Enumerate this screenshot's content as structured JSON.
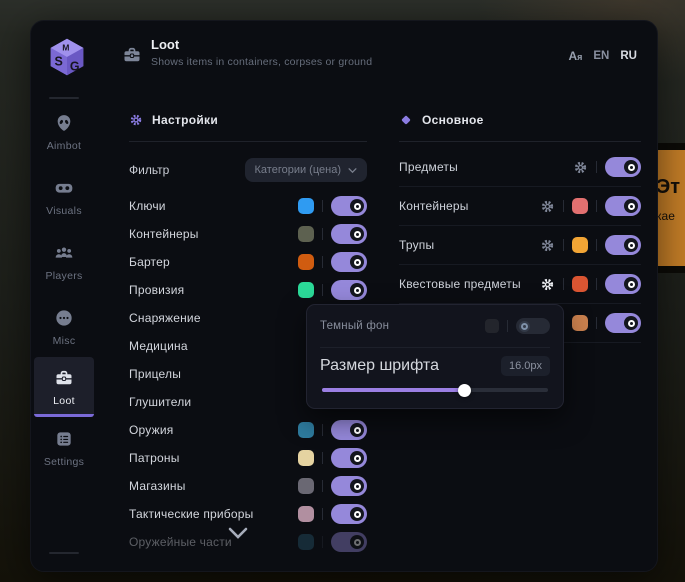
{
  "header": {
    "title": "Loot",
    "subtitle": "Shows items in containers, corpses or ground",
    "lang_en": "EN",
    "lang_ru": "RU",
    "lang_selected": "RU"
  },
  "sidebar": {
    "items": [
      {
        "label": "Aimbot",
        "icon": "alien-icon",
        "active": false
      },
      {
        "label": "Visuals",
        "icon": "goggles-icon",
        "active": false
      },
      {
        "label": "Players",
        "icon": "players-icon",
        "active": false
      },
      {
        "label": "Misc",
        "icon": "misc-icon",
        "active": false
      },
      {
        "label": "Loot",
        "icon": "briefcase-icon",
        "active": true
      },
      {
        "label": "Settings",
        "icon": "list-icon",
        "active": false
      }
    ]
  },
  "settings_panel": {
    "title": "Настройки",
    "icon": "gear-icon",
    "filter": {
      "label": "Фильтр",
      "value": "Категории (цена)"
    },
    "items": [
      {
        "label": "Ключи",
        "color": "#2f9bf2",
        "enabled": true
      },
      {
        "label": "Контейнеры",
        "color": "#5d6150",
        "enabled": true
      },
      {
        "label": "Бартер",
        "color": "#d05c10",
        "enabled": true
      },
      {
        "label": "Провизия",
        "color": "#2bd998",
        "enabled": true
      },
      {
        "label": "Снаряжение",
        "color": null,
        "enabled": null,
        "covered_by_popup": true
      },
      {
        "label": "Медицина",
        "color": null,
        "enabled": null,
        "covered_by_popup": true
      },
      {
        "label": "Прицелы",
        "color": null,
        "enabled": null,
        "covered_by_popup": true
      },
      {
        "label": "Глушители",
        "color": null,
        "enabled": null,
        "covered_by_popup": true
      },
      {
        "label": "Оружия",
        "color": "#2e7b9e",
        "enabled": true
      },
      {
        "label": "Патроны",
        "color": "#e5d3a1",
        "enabled": true
      },
      {
        "label": "Магазины",
        "color": "#6a6873",
        "enabled": true
      },
      {
        "label": "Тактические приборы",
        "color": "#b18fa0",
        "enabled": true
      },
      {
        "label": "Оружейные части",
        "color": "#27586e",
        "enabled": true,
        "dimmed": true
      }
    ]
  },
  "main_panel": {
    "title": "Основное",
    "icon": "diamond-icon",
    "rows": [
      {
        "label": "Предметы",
        "color": null,
        "enabled": true,
        "gear": true,
        "gear_active": false
      },
      {
        "label": "Контейнеры",
        "color": "#e27070",
        "enabled": true,
        "gear": true,
        "gear_active": false
      },
      {
        "label": "Трупы",
        "color": "#f2a535",
        "enabled": true,
        "gear": true,
        "gear_active": false
      },
      {
        "label": "Квестовые предметы",
        "color": "#da5532",
        "enabled": true,
        "gear": true,
        "gear_active": true
      },
      {
        "label": "",
        "color": "#c9804e",
        "enabled": true,
        "gear": false,
        "gear_active": false,
        "label_covered_by_popup": true
      }
    ]
  },
  "popup": {
    "dark_bg": {
      "label": "Темный фон",
      "swatch": "#23252c",
      "enabled": false
    },
    "font_size": {
      "label": "Размер шрифта",
      "value": "16.0px",
      "percent": 63
    }
  },
  "background": {
    "tooltip_line1": "Эт",
    "tooltip_line2": "кае"
  },
  "theme": {
    "accent": "#9588da",
    "slider_fill": "#9b7fe3",
    "window_bg": "#0b0d12",
    "popup_bg": "#12141d",
    "tooltip_orange": "#c57e27"
  }
}
